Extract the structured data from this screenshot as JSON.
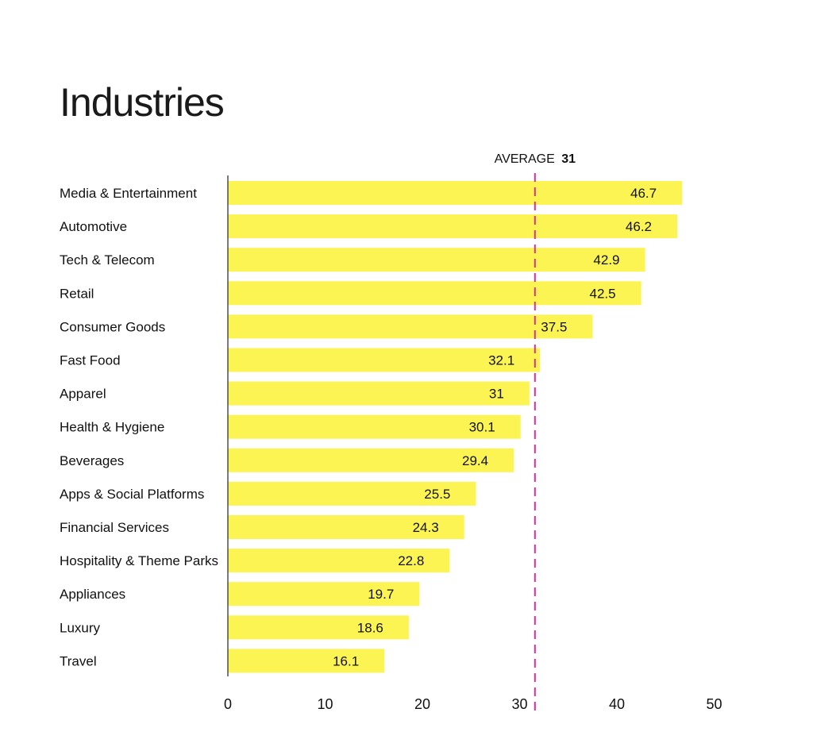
{
  "chart_data": {
    "type": "bar",
    "orientation": "horizontal",
    "title": "Industries",
    "categories": [
      "Media & Entertainment",
      "Automotive",
      "Tech & Telecom",
      "Retail",
      "Consumer Goods",
      "Fast Food",
      "Apparel",
      "Health & Hygiene",
      "Beverages",
      "Apps & Social Platforms",
      "Financial Services",
      "Hospitality & Theme Parks",
      "Appliances",
      "Luxury",
      "Travel"
    ],
    "values": [
      46.7,
      46.2,
      42.9,
      42.5,
      37.5,
      32.1,
      31,
      30.1,
      29.4,
      25.5,
      24.3,
      22.8,
      19.7,
      18.6,
      16.1
    ],
    "value_labels": [
      "46.7",
      "46.2",
      "42.9",
      "42.5",
      "37.5",
      "32.1",
      "31",
      "30.1",
      "29.4",
      "25.5",
      "24.3",
      "22.8",
      "19.7",
      "18.6",
      "16.1"
    ],
    "xlim": [
      0,
      50
    ],
    "xticks": [
      0,
      10,
      20,
      30,
      40,
      50
    ],
    "xtick_labels": [
      "0",
      "10",
      "20",
      "30",
      "40",
      "50"
    ],
    "reference_line": {
      "label": "AVERAGE",
      "value_label": "31",
      "value": 31,
      "style": "dashed",
      "color": "#d6338f"
    },
    "bar_color": "#fbf453",
    "grid": false,
    "legend": "none"
  }
}
